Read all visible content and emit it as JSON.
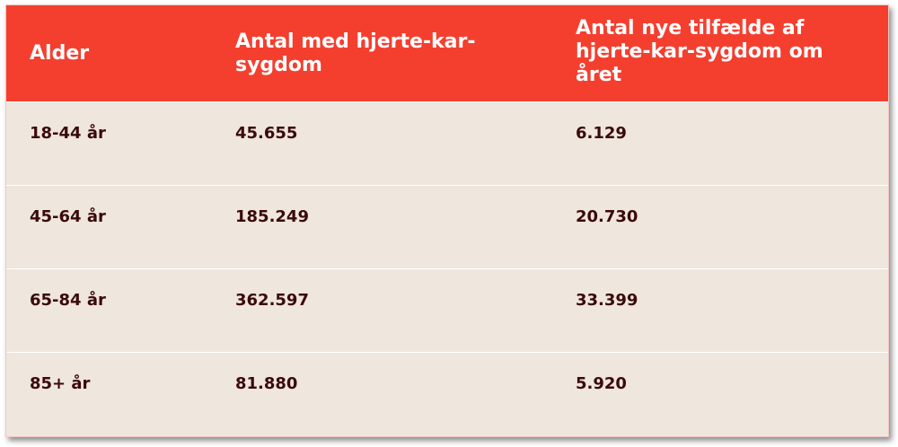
{
  "table": {
    "headers": [
      "Alder",
      "Antal med hjerte-kar-sygdom",
      "Antal nye tilfælde af hjerte-kar-sygdom om året"
    ],
    "rows": [
      [
        "18-44 år",
        "45.655",
        "6.129"
      ],
      [
        "45-64 år",
        "185.249",
        "20.730"
      ],
      [
        "65-84 år",
        "362.597",
        "33.399"
      ],
      [
        "85+ år",
        "81.880",
        "5.920"
      ]
    ],
    "colors": {
      "header_bg": "#f43f2f",
      "body_bg": "#efe6de",
      "body_text": "#3a0a0a"
    }
  }
}
